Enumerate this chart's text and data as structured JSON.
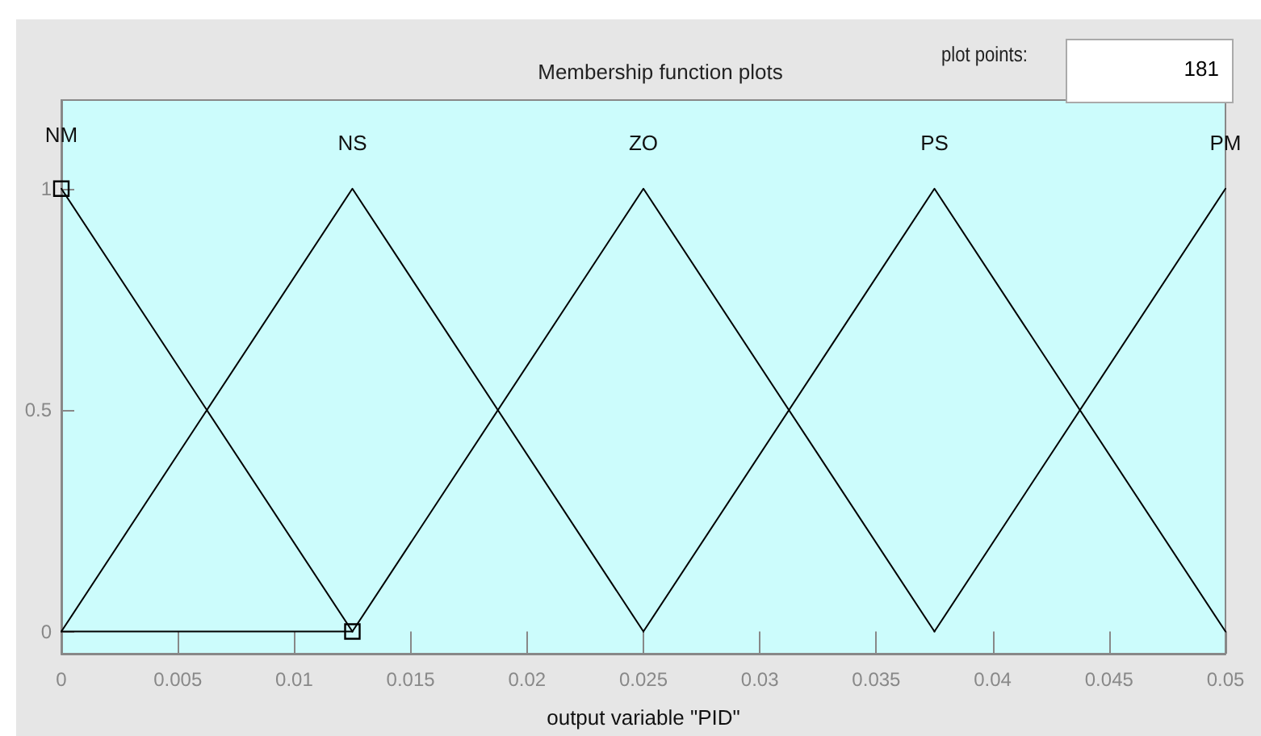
{
  "chart_data": {
    "type": "line",
    "title": "Membership function plots",
    "xlabel": "output variable \"PID\"",
    "annotations": [
      "plot points:",
      "181"
    ],
    "xlim": [
      0,
      0.05
    ],
    "xticks": [
      0,
      0.005,
      0.01,
      0.015,
      0.02,
      0.025,
      0.03,
      0.035,
      0.04,
      0.045,
      0.05
    ],
    "ylim": [
      -0.05,
      1.2
    ],
    "yticks": [
      0,
      0.5,
      1
    ],
    "grid": false,
    "legend": false,
    "marker": "none",
    "line_style": "solid",
    "series": [
      {
        "name": "NM",
        "color": "#000000",
        "x": [
          0,
          0.0125
        ],
        "values": [
          1,
          0
        ],
        "marker": "square"
      },
      {
        "color": "#000000",
        "x": [
          0,
          0.0125
        ],
        "values": [
          0,
          0
        ]
      },
      {
        "name": "NS",
        "color": "#000000",
        "x": [
          0,
          0.0125,
          0.025
        ],
        "values": [
          0,
          1,
          0
        ]
      },
      {
        "name": "ZO",
        "color": "#000000",
        "x": [
          0.0125,
          0.025,
          0.0375
        ],
        "values": [
          0,
          1,
          0
        ]
      },
      {
        "name": "PS",
        "color": "#000000",
        "x": [
          0.025,
          0.0375,
          0.05
        ],
        "values": [
          0,
          1,
          0
        ]
      },
      {
        "name": "PM",
        "color": "#000000",
        "x": [
          0.0375,
          0.05
        ],
        "values": [
          0,
          1
        ]
      }
    ]
  }
}
